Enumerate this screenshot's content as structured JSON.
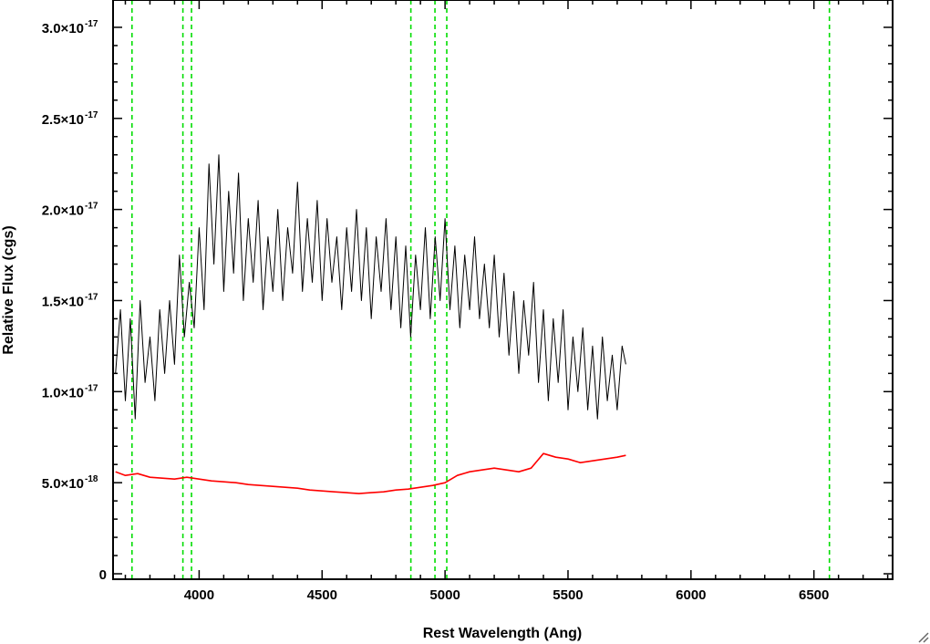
{
  "chart_data": {
    "type": "line",
    "title": "",
    "xlabel": "Rest Wavelength (Ang)",
    "ylabel": "Relative Flux (cgs)",
    "xlim": [
      3650,
      6820
    ],
    "ylim": [
      -3e-19,
      3.15e-17
    ],
    "grid": false,
    "legend": "none",
    "x_ticks": [
      {
        "value": 4000,
        "label": "4000"
      },
      {
        "value": 4500,
        "label": "4500"
      },
      {
        "value": 5000,
        "label": "5000"
      },
      {
        "value": 5500,
        "label": "5500"
      },
      {
        "value": 6000,
        "label": "6000"
      },
      {
        "value": 6500,
        "label": "6500"
      }
    ],
    "y_ticks": [
      {
        "value": 0,
        "mant": "0",
        "exp": ""
      },
      {
        "value": 5e-18,
        "mant": "5.0×10",
        "exp": "-18"
      },
      {
        "value": 1e-17,
        "mant": "1.0×10",
        "exp": "-17"
      },
      {
        "value": 1.5e-17,
        "mant": "1.5×10",
        "exp": "-17"
      },
      {
        "value": 2e-17,
        "mant": "2.0×10",
        "exp": "-17"
      },
      {
        "value": 2.5e-17,
        "mant": "2.5×10",
        "exp": "-17"
      },
      {
        "value": 3e-17,
        "mant": "3.0×10",
        "exp": "-17"
      }
    ],
    "vlines": [
      {
        "x": 3727,
        "color": "#00dd00",
        "style": "dashed"
      },
      {
        "x": 3934,
        "color": "#00dd00",
        "style": "dashed"
      },
      {
        "x": 3969,
        "color": "#00dd00",
        "style": "dashed"
      },
      {
        "x": 4861,
        "color": "#00dd00",
        "style": "dashed"
      },
      {
        "x": 4959,
        "color": "#00dd00",
        "style": "dashed"
      },
      {
        "x": 5007,
        "color": "#00dd00",
        "style": "dashed"
      },
      {
        "x": 6563,
        "color": "#00dd00",
        "style": "dashed"
      }
    ],
    "series": [
      {
        "color": "#000000",
        "x": [
          3660,
          3680,
          3700,
          3720,
          3740,
          3760,
          3780,
          3800,
          3820,
          3840,
          3860,
          3880,
          3900,
          3920,
          3940,
          3960,
          3980,
          4000,
          4020,
          4040,
          4060,
          4080,
          4100,
          4120,
          4140,
          4160,
          4180,
          4200,
          4220,
          4240,
          4260,
          4280,
          4300,
          4320,
          4340,
          4360,
          4380,
          4400,
          4420,
          4440,
          4460,
          4480,
          4500,
          4520,
          4540,
          4560,
          4580,
          4600,
          4620,
          4640,
          4660,
          4680,
          4700,
          4720,
          4740,
          4760,
          4780,
          4800,
          4820,
          4840,
          4860,
          4880,
          4900,
          4920,
          4940,
          4960,
          4980,
          5000,
          5020,
          5040,
          5060,
          5080,
          5100,
          5120,
          5140,
          5160,
          5180,
          5200,
          5220,
          5240,
          5260,
          5280,
          5300,
          5320,
          5340,
          5360,
          5380,
          5400,
          5420,
          5440,
          5460,
          5480,
          5500,
          5520,
          5540,
          5560,
          5580,
          5600,
          5620,
          5640,
          5660,
          5680,
          5700,
          5720,
          5735
        ],
        "y": [
          1.1e-17,
          1.45e-17,
          9.5e-18,
          1.4e-17,
          8.5e-18,
          1.5e-17,
          1.05e-17,
          1.3e-17,
          9.5e-18,
          1.45e-17,
          1.1e-17,
          1.5e-17,
          1.15e-17,
          1.75e-17,
          1.3e-17,
          1.6e-17,
          1.35e-17,
          1.9e-17,
          1.45e-17,
          2.25e-17,
          1.7e-17,
          2.3e-17,
          1.55e-17,
          2.1e-17,
          1.65e-17,
          2.2e-17,
          1.5e-17,
          1.95e-17,
          1.6e-17,
          2.05e-17,
          1.45e-17,
          1.85e-17,
          1.55e-17,
          2e-17,
          1.5e-17,
          1.9e-17,
          1.65e-17,
          2.15e-17,
          1.55e-17,
          1.95e-17,
          1.6e-17,
          2.05e-17,
          1.5e-17,
          1.95e-17,
          1.6e-17,
          1.85e-17,
          1.45e-17,
          1.9e-17,
          1.55e-17,
          2e-17,
          1.5e-17,
          1.9e-17,
          1.4e-17,
          1.85e-17,
          1.55e-17,
          1.95e-17,
          1.45e-17,
          1.85e-17,
          1.35e-17,
          1.8e-17,
          1.3e-17,
          1.75e-17,
          1.45e-17,
          1.9e-17,
          1.4e-17,
          1.85e-17,
          1.5e-17,
          1.95e-17,
          1.45e-17,
          1.8e-17,
          1.35e-17,
          1.75e-17,
          1.45e-17,
          1.85e-17,
          1.4e-17,
          1.7e-17,
          1.35e-17,
          1.75e-17,
          1.3e-17,
          1.65e-17,
          1.2e-17,
          1.55e-17,
          1.1e-17,
          1.5e-17,
          1.2e-17,
          1.6e-17,
          1.05e-17,
          1.45e-17,
          9.5e-18,
          1.4e-17,
          1.05e-17,
          1.45e-17,
          9e-18,
          1.3e-17,
          1e-17,
          1.35e-17,
          9e-18,
          1.25e-17,
          8.5e-18,
          1.3e-17,
          9.5e-18,
          1.2e-17,
          9e-18,
          1.25e-17,
          1.15e-17
        ]
      },
      {
        "color": "#ff0000",
        "x": [
          3660,
          3700,
          3750,
          3800,
          3850,
          3900,
          3950,
          4000,
          4050,
          4100,
          4150,
          4200,
          4250,
          4300,
          4350,
          4400,
          4450,
          4500,
          4550,
          4600,
          4650,
          4700,
          4750,
          4800,
          4850,
          4900,
          4950,
          5000,
          5050,
          5100,
          5150,
          5200,
          5250,
          5300,
          5350,
          5400,
          5450,
          5500,
          5550,
          5600,
          5650,
          5700,
          5735
        ],
        "y": [
          5.6e-18,
          5.4e-18,
          5.5e-18,
          5.3e-18,
          5.25e-18,
          5.2e-18,
          5.3e-18,
          5.2e-18,
          5.1e-18,
          5.05e-18,
          5e-18,
          4.9e-18,
          4.85e-18,
          4.8e-18,
          4.75e-18,
          4.7e-18,
          4.6e-18,
          4.55e-18,
          4.5e-18,
          4.45e-18,
          4.4e-18,
          4.45e-18,
          4.5e-18,
          4.6e-18,
          4.65e-18,
          4.75e-18,
          4.85e-18,
          5e-18,
          5.4e-18,
          5.6e-18,
          5.7e-18,
          5.8e-18,
          5.7e-18,
          5.6e-18,
          5.8e-18,
          6.6e-18,
          6.4e-18,
          6.3e-18,
          6.1e-18,
          6.2e-18,
          6.3e-18,
          6.4e-18,
          6.5e-18
        ]
      }
    ]
  }
}
